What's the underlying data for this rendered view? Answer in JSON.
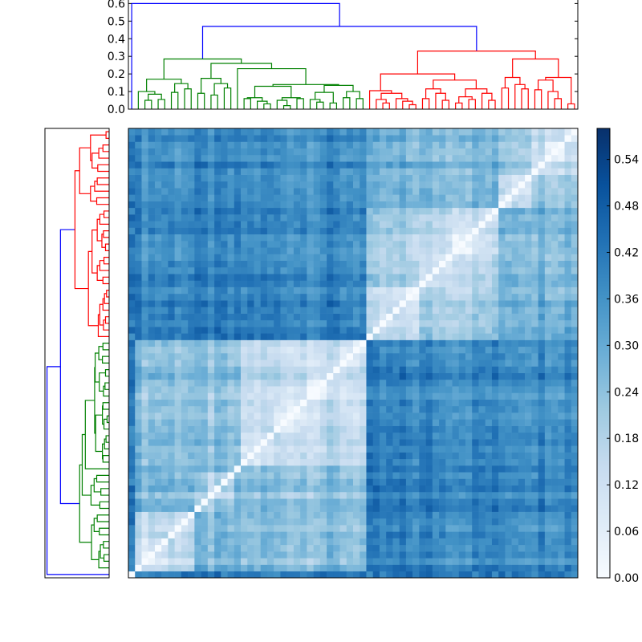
{
  "chart_data": {
    "type": "heatmap",
    "title": "",
    "description_kind": "clustered distance matrix with dendrograms",
    "top_dendrogram": {
      "yticks": [
        "0.0",
        "0.1",
        "0.2",
        "0.3",
        "0.4",
        "0.5",
        "0.6"
      ],
      "ylim": [
        0,
        0.62
      ]
    },
    "color_threshold": 0.4,
    "above_threshold_color": "#0000ff",
    "cluster_colors": [
      "#008000",
      "#ff0000"
    ],
    "tree": [
      0.6,
      0,
      [
        0.47,
        [
          0.285,
          [
            0.17,
            [
              0.1,
              0,
              [
                0.085,
                [
                  0.05,
                  0,
                  0
                ],
                [
                  0.055,
                  0,
                  0
                ]
              ]
            ],
            [
              0.145,
              [
                0.095,
                0,
                0
              ],
              [
                0.115,
                0,
                0
              ]
            ]
          ],
          [
            0.26,
            [
              0.175,
              [
                0.09,
                0,
                0
              ],
              [
                0.145,
                [
                  0.08,
                  0,
                  0
                ],
                [
                  0.12,
                  0,
                  0
                ]
              ]
            ],
            [
              0.23,
              0,
              [
                0.14,
                [
                  0.13,
                  [
                    0.065,
                    [
                      0.06,
                      0,
                      0
                    ],
                    [
                      0.045,
                      0,
                      [
                        0.03,
                        0,
                        0
                      ]
                    ]
                  ],
                  [
                    0.065,
                    [
                      0.05,
                      0,
                      [
                        0.02,
                        0,
                        0
                      ]
                    ],
                    [
                      0.06,
                      0,
                      0
                    ]
                  ]
                ],
                [
                  0.135,
                  [
                    0.095,
                    [
                      0.055,
                      0,
                      [
                        0.04,
                        0,
                        0
                      ]
                    ],
                    [
                      0.035,
                      0,
                      0
                    ]
                  ],
                  [
                    0.1,
                    [
                      0.065,
                      0,
                      0
                    ],
                    [
                      0.06,
                      0,
                      0
                    ]
                  ]
                ]
              ]
            ]
          ]
        ],
        [
          0.33,
          [
            0.2,
            [
              0.105,
              0,
              [
                0.09,
                [
                  0.055,
                  0,
                  [
                    0.035,
                    0,
                    0
                  ]
                ],
                [
                  0.06,
                  0,
                  [
                    0.045,
                    0,
                    [
                      0.025,
                      0,
                      0
                    ]
                  ]
                ]
              ]
            ],
            [
              0.165,
              [
                0.115,
                [
                  0.06,
                  0,
                  0
                ],
                [
                  0.09,
                  0,
                  [
                    0.05,
                    0,
                    0
                  ]
                ]
              ],
              [
                0.115,
                [
                  0.07,
                  [
                    0.035,
                    0,
                    0
                  ],
                  [
                    0.055,
                    0,
                    0
                  ]
                ],
                [
                  0.09,
                  0,
                  [
                    0.05,
                    0,
                    0
                  ]
                ]
              ]
            ]
          ],
          [
            0.285,
            [
              0.18,
              [
                0.12,
                0,
                0
              ],
              [
                0.14,
                0,
                [
                  0.115,
                  0,
                  0
                ]
              ]
            ],
            [
              0.18,
              [
                0.165,
                [
                  0.11,
                  0,
                  0
                ],
                [
                  0.1,
                  0,
                  [
                    0.06,
                    0,
                    0
                  ]
                ]
              ],
              [
                0.03,
                0,
                0
              ]
            ]
          ]
        ]
      ]
    ],
    "colorbar": {
      "ticks": [
        "0.00",
        "0.06",
        "0.12",
        "0.18",
        "0.24",
        "0.30",
        "0.36",
        "0.42",
        "0.48",
        "0.54"
      ],
      "range": [
        0,
        0.58
      ],
      "colormap": [
        "#f7fbff",
        "#deebf7",
        "#c6dbef",
        "#9ecae1",
        "#6baed6",
        "#4292c6",
        "#2171b5",
        "#08519c",
        "#08306b"
      ]
    }
  }
}
